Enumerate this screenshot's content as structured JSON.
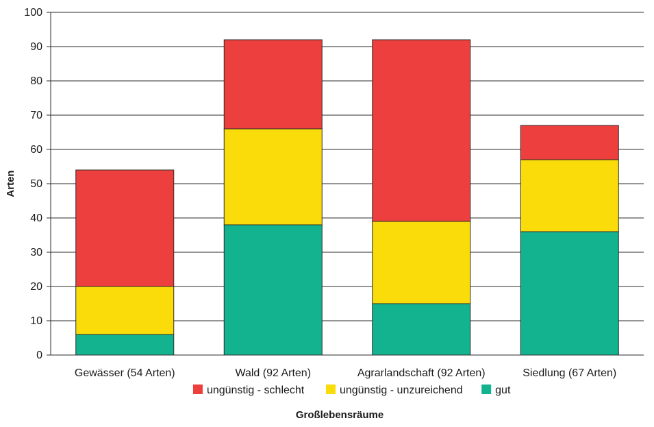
{
  "chart_data": {
    "type": "bar",
    "stacked": true,
    "categories": [
      "Gewässer (54 Arten)",
      "Wald (92 Arten)",
      "Agrarlandschaft (92 Arten)",
      "Siedlung (67 Arten)"
    ],
    "series": [
      {
        "name": "gut",
        "color": "#13b38f",
        "values": [
          6,
          38,
          15,
          36
        ]
      },
      {
        "name": "ungünstig - unzureichend",
        "color": "#f9dc0a",
        "values": [
          14,
          28,
          24,
          21
        ]
      },
      {
        "name": "ungünstig - schlecht",
        "color": "#ed3f3d",
        "values": [
          34,
          26,
          53,
          10
        ]
      }
    ],
    "legend_order": [
      "ungünstig - schlecht",
      "ungünstig - unzureichend",
      "gut"
    ],
    "legend_position": "bottom",
    "ylabel": "Arten",
    "xlabel": "Großlebensräume",
    "ylim": [
      0,
      100
    ],
    "yticks": [
      0,
      10,
      20,
      30,
      40,
      50,
      60,
      70,
      80,
      90,
      100
    ],
    "grid": true
  }
}
